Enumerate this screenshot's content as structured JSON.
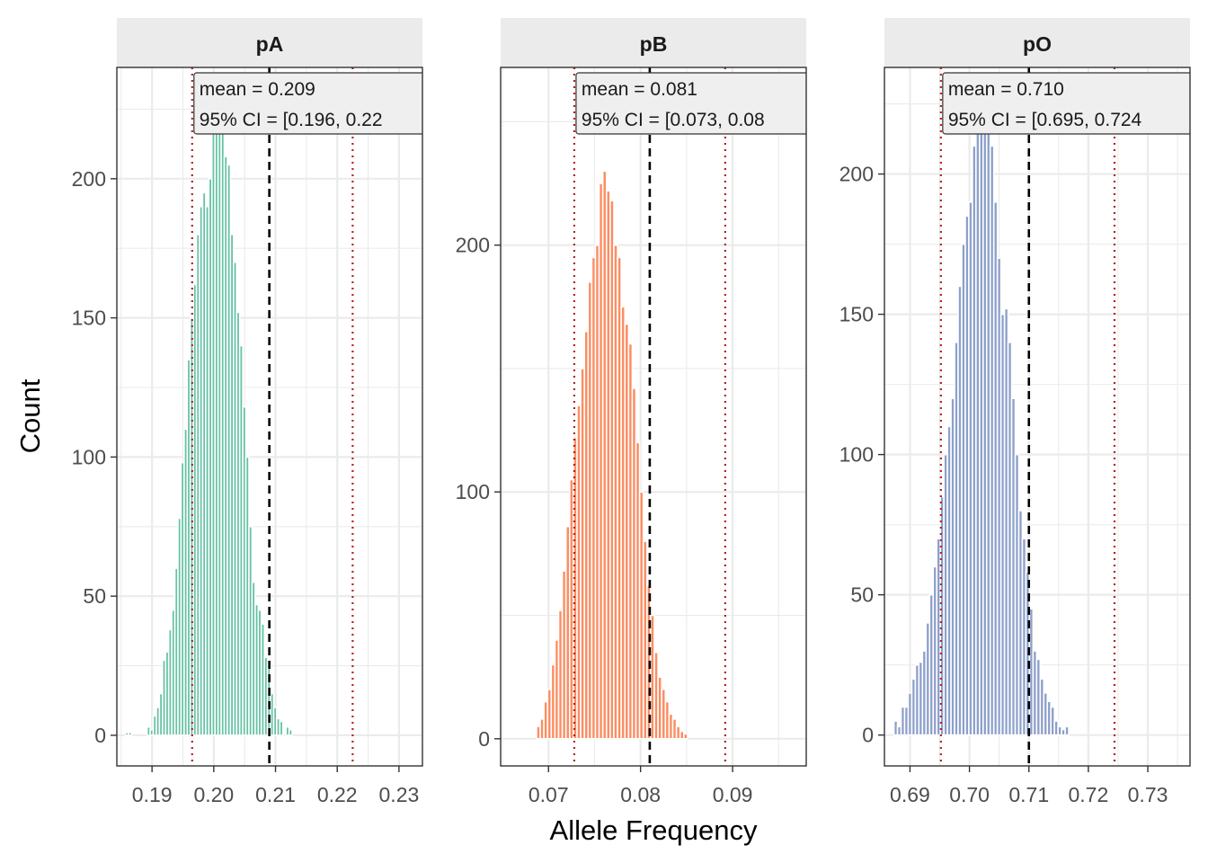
{
  "y_axis_label": "Count",
  "x_axis_label": "Allele Frequency",
  "colors": {
    "pA": "#66C2A5",
    "pB": "#FC8D62",
    "pO": "#8DA0CB",
    "mean_line": "#000000",
    "ci_line": "#B22222",
    "strip_bg": "#EBEBEB",
    "grid": "#EBEBEB"
  },
  "chart_data": [
    {
      "type": "bar",
      "panel": "pA",
      "strip_label": "pA",
      "annotation": {
        "mean_text": "mean = 0.209",
        "ci_text": "95% CI = [0.196, 0.22"
      },
      "mean": 0.209,
      "ci": [
        0.1965,
        0.2225
      ],
      "bin_width": 0.0005,
      "x_start": 0.1857,
      "counts": [
        1,
        1,
        0,
        0,
        0,
        0,
        0,
        3,
        2,
        7,
        10,
        15,
        27,
        30,
        38,
        45,
        60,
        78,
        98,
        110,
        135,
        150,
        162,
        180,
        190,
        195,
        190,
        200,
        225,
        230,
        222,
        218,
        208,
        205,
        180,
        170,
        152,
        140,
        118,
        100,
        75,
        55,
        47,
        45,
        40,
        28,
        25,
        15,
        10,
        6,
        5,
        0,
        3,
        2,
        0,
        0
      ],
      "xlim": [
        0.1843,
        0.2338
      ],
      "ylim": [
        -11,
        240
      ],
      "x_ticks": [
        0.19,
        0.2,
        0.21,
        0.22,
        0.23
      ],
      "x_tick_labels": [
        "0.19",
        "0.20",
        "0.21",
        "0.22",
        "0.23"
      ],
      "y_ticks": [
        0,
        50,
        100,
        150,
        200
      ],
      "y_tick_labels": [
        "0",
        "50",
        "100",
        "150",
        "200"
      ]
    },
    {
      "type": "bar",
      "panel": "pB",
      "strip_label": "pB",
      "annotation": {
        "mean_text": "mean = 0.081",
        "ci_text": "95% CI = [0.073, 0.08"
      },
      "mean": 0.081,
      "ci": [
        0.0728,
        0.0892
      ],
      "bin_width": 0.0004,
      "x_start": 0.0687,
      "counts": [
        5,
        8,
        15,
        20,
        30,
        40,
        52,
        68,
        86,
        105,
        122,
        135,
        150,
        165,
        185,
        195,
        200,
        225,
        230,
        222,
        218,
        200,
        195,
        175,
        168,
        160,
        142,
        120,
        100,
        80,
        62,
        50,
        35,
        25,
        20,
        15,
        10,
        8,
        5,
        3,
        2
      ],
      "xlim": [
        0.0648,
        0.098
      ],
      "ylim": [
        -11,
        272
      ],
      "x_ticks": [
        0.07,
        0.08,
        0.09
      ],
      "x_tick_labels": [
        "0.07",
        "0.08",
        "0.09"
      ],
      "y_ticks": [
        0,
        100,
        200
      ],
      "y_tick_labels": [
        "0",
        "100",
        "200"
      ]
    },
    {
      "type": "bar",
      "panel": "pO",
      "strip_label": "pO",
      "annotation": {
        "mean_text": "mean = 0.710",
        "ci_text": "95% CI = [0.695, 0.724"
      },
      "mean": 0.71,
      "ci": [
        0.6952,
        0.7244
      ],
      "bin_width": 0.0006,
      "x_start": 0.6873,
      "counts": [
        5,
        3,
        10,
        10,
        15,
        20,
        25,
        26,
        30,
        40,
        50,
        60,
        70,
        85,
        100,
        110,
        120,
        140,
        160,
        175,
        185,
        190,
        210,
        225,
        230,
        235,
        222,
        210,
        190,
        170,
        150,
        152,
        140,
        120,
        100,
        80,
        70,
        58,
        45,
        30,
        27,
        20,
        15,
        12,
        10,
        5,
        3,
        2,
        3
      ],
      "xlim": [
        0.6857,
        0.7371
      ],
      "ylim": [
        -11,
        238
      ],
      "x_ticks": [
        0.69,
        0.7,
        0.71,
        0.72,
        0.73
      ],
      "x_tick_labels": [
        "0.69",
        "0.70",
        "0.71",
        "0.72",
        "0.73"
      ],
      "y_ticks": [
        0,
        50,
        100,
        150,
        200
      ],
      "y_tick_labels": [
        "0",
        "50",
        "100",
        "150",
        "200"
      ]
    }
  ]
}
